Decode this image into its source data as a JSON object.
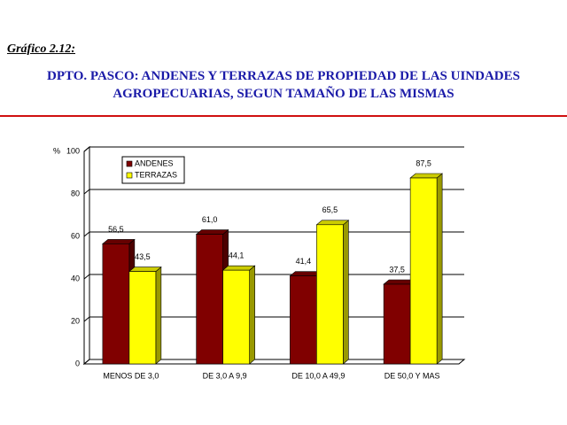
{
  "chart_data": {
    "type": "bar",
    "label": "Gráfico  2.12:",
    "title": "DPTO. PASCO: ANDENES Y TERRAZAS DE PROPIEDAD DE LAS UINDADES AGROPECUARIAS, SEGUN TAMAÑO DE LAS MISMAS",
    "ylabel": "%",
    "categories": [
      "MENOS DE 3,0",
      "DE 3,0 A 9,9",
      "DE 10,0 A 49,9",
      "DE 50,0 Y MAS"
    ],
    "series": [
      {
        "name": "ANDENES",
        "color": "#800000",
        "values": [
          56.5,
          61.0,
          41.4,
          37.5
        ],
        "value_labels": [
          "56,5",
          "61,0",
          "41,4",
          "37,5"
        ]
      },
      {
        "name": "TERRAZAS",
        "color": "#ffff00",
        "values": [
          43.5,
          44.1,
          65.5,
          87.5
        ],
        "value_labels": [
          "43,5",
          "44,1",
          "65,5",
          "87,5"
        ]
      }
    ],
    "ylim": [
      0,
      100
    ],
    "yticks": [
      0,
      20,
      40,
      60,
      80,
      100
    ],
    "grid": true
  }
}
